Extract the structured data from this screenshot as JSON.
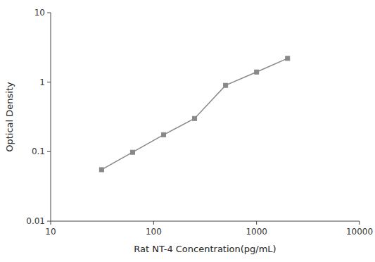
{
  "chart_data": {
    "type": "line",
    "x": [
      31.25,
      62.5,
      125,
      250,
      500,
      1000,
      2000
    ],
    "values": [
      0.055,
      0.098,
      0.175,
      0.3,
      0.9,
      1.4,
      2.2
    ],
    "xlabel": "Rat NT-4 Concentration(pg/mL)",
    "ylabel": "Optical Density",
    "xlim": [
      10,
      10000
    ],
    "ylim": [
      0.01,
      10
    ],
    "xticks": [
      10,
      100,
      1000,
      10000
    ],
    "yticks": [
      0.01,
      0.1,
      1,
      10
    ],
    "log": true,
    "grid": false,
    "color": "#888888",
    "marker": "square",
    "line_style": "solid"
  }
}
